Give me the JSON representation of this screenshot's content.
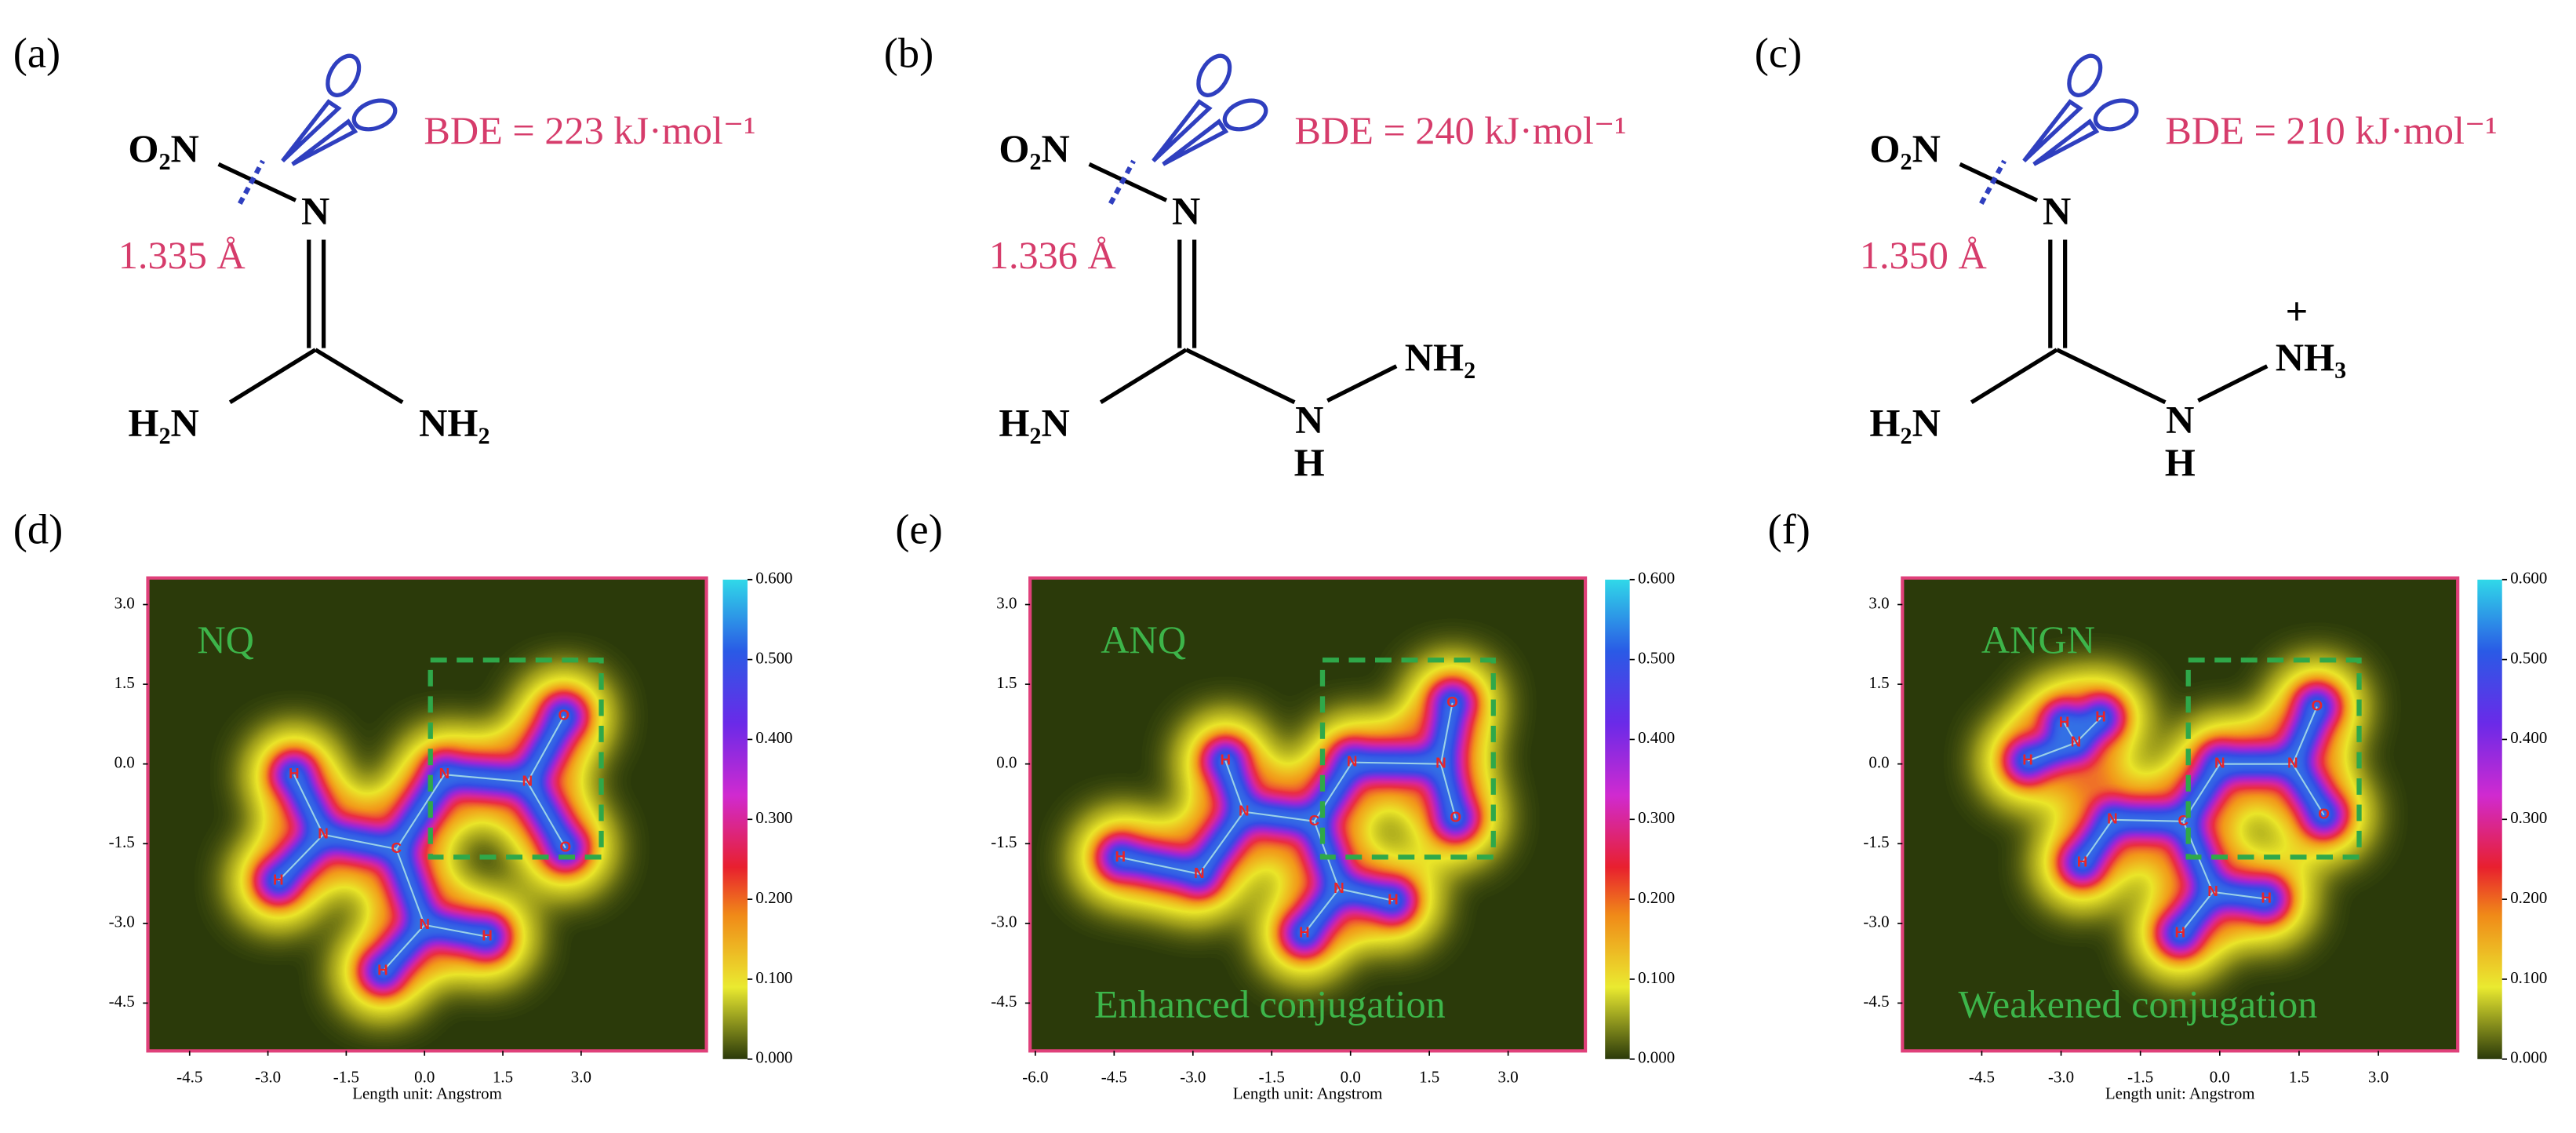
{
  "structures": [
    {
      "label": "(a)",
      "left_group": "O₂N",
      "top_atom": "N",
      "bond_length": "1.335 Å",
      "bde": "BDE = 223 kJ·mol⁻¹",
      "bottom_left": "H₂N",
      "bottom_right": "NH₂"
    },
    {
      "label": "(b)",
      "left_group": "O₂N",
      "top_atom": "N",
      "bond_length": "1.336 Å",
      "bde": "BDE = 240 kJ·mol⁻¹",
      "bottom_left": "H₂N",
      "bottom_right": "N",
      "bottom_right_h": "H",
      "terminal": "NH₂"
    },
    {
      "label": "(c)",
      "left_group": "O₂N",
      "top_atom": "N",
      "bond_length": "1.350 Å",
      "bde": "BDE = 210 kJ·mol⁻¹",
      "bottom_left": "H₂N",
      "bottom_right": "N",
      "bottom_right_h": "H",
      "terminal": "NH₃",
      "charge": "+"
    }
  ],
  "maps": [
    {
      "label": "(d)",
      "name": "NQ",
      "x_axis_label": "Length unit: Angstrom",
      "xlim": [
        -5.3,
        5.4
      ],
      "ylim": [
        -5.4,
        3.5
      ],
      "xticks": [
        -4.5,
        {
          "value": -3.0,
          "label": "-3.0"
        },
        -1.5,
        {
          "value": 0.0,
          "label": "0.0"
        },
        1.5,
        {
          "value": 3.0,
          "label": "3.0"
        }
      ],
      "yticks": [
        {
          "value": 3.0,
          "label": "3.0"
        },
        1.5,
        {
          "value": 0.0,
          "label": "0.0"
        },
        -1.5,
        {
          "value": -3.0,
          "label": "-3.0"
        },
        -4.5
      ],
      "colorbar_ticks": [
        {
          "value": 0,
          "label": "0.000"
        },
        {
          "value": 0.1,
          "label": "0.100"
        },
        {
          "value": 0.2,
          "label": "0.200"
        },
        {
          "value": 0.3,
          "label": "0.300"
        },
        {
          "value": 0.4,
          "label": "0.400"
        },
        {
          "value": 0.5,
          "label": "0.500"
        },
        {
          "value": 0.6,
          "label": "0.600"
        }
      ],
      "atoms": [
        {
          "label": "N",
          "x": 0.38,
          "y": -0.2
        },
        {
          "label": "N",
          "x": 1.97,
          "y": -0.34
        },
        {
          "label": "O",
          "x": 2.67,
          "y": 0.9
        },
        {
          "label": "O",
          "x": 2.7,
          "y": -1.58
        },
        {
          "label": "C",
          "x": -0.54,
          "y": -1.6
        },
        {
          "label": "N",
          "x": -1.94,
          "y": -1.33
        },
        {
          "label": "H",
          "x": -2.5,
          "y": -0.2
        },
        {
          "label": "H",
          "x": -2.8,
          "y": -2.2
        },
        {
          "label": "N",
          "x": 0.0,
          "y": -3.03
        },
        {
          "label": "H",
          "x": -0.8,
          "y": -3.9
        },
        {
          "label": "H",
          "x": 1.2,
          "y": -3.25
        }
      ]
    },
    {
      "label": "(e)",
      "name": "ANQ",
      "note": "Enhanced conjugation",
      "x_axis_label": "Length unit: Angstrom",
      "xlim": [
        -6.1,
        4.47
      ],
      "ylim": [
        -5.4,
        3.5
      ],
      "xticks": [
        {
          "value": -6.0,
          "label": "-6.0"
        },
        -4.5,
        {
          "value": -3.0,
          "label": "-3.0"
        },
        -1.5,
        {
          "value": 0.0,
          "label": "0.0"
        },
        1.5,
        {
          "value": 3.0,
          "label": "3.0"
        }
      ],
      "yticks": [
        {
          "value": 3.0,
          "label": "3.0"
        },
        1.5,
        {
          "value": 0.0,
          "label": "0.0"
        },
        -1.5,
        {
          "value": -3.0,
          "label": "-3.0"
        },
        -4.5
      ],
      "colorbar_ticks": [
        {
          "value": 0,
          "label": "0.000"
        },
        {
          "value": 0.1,
          "label": "0.100"
        },
        {
          "value": 0.2,
          "label": "0.200"
        },
        {
          "value": 0.3,
          "label": "0.300"
        },
        {
          "value": 0.4,
          "label": "0.400"
        },
        {
          "value": 0.5,
          "label": "0.500"
        },
        {
          "value": 0.6,
          "label": "0.600"
        }
      ],
      "atoms": [
        {
          "label": "N",
          "x": 0.03,
          "y": 0.03
        },
        {
          "label": "N",
          "x": 1.72,
          "y": 0
        },
        {
          "label": "O",
          "x": 1.94,
          "y": 1.15
        },
        {
          "label": "O",
          "x": 2.0,
          "y": -1.02
        },
        {
          "label": "C",
          "x": -0.69,
          "y": -1.08
        },
        {
          "label": "N",
          "x": -2.03,
          "y": -0.9
        },
        {
          "label": "H",
          "x": -2.38,
          "y": 0.06
        },
        {
          "label": "N",
          "x": -2.88,
          "y": -2.07
        },
        {
          "label": "H",
          "x": -4.38,
          "y": -1.76
        },
        {
          "label": "N",
          "x": -0.22,
          "y": -2.35
        },
        {
          "label": "H",
          "x": -0.88,
          "y": -3.19
        },
        {
          "label": "H",
          "x": 0.81,
          "y": -2.57
        }
      ]
    },
    {
      "label": "(f)",
      "name": "ANGN",
      "note": "Weakened conjugation",
      "x_axis_label": "Length unit: Angstrom",
      "xlim": [
        -6.0,
        4.5
      ],
      "ylim": [
        -5.4,
        3.5
      ],
      "xticks": [
        -4.5,
        {
          "value": -3.0,
          "label": "-3.0"
        },
        -1.5,
        {
          "value": 0.0,
          "label": "0.0"
        },
        1.5,
        {
          "value": 3.0,
          "label": "3.0"
        }
      ],
      "yticks": [
        {
          "value": 3.0,
          "label": "3.0"
        },
        1.5,
        {
          "value": 0.0,
          "label": "0.0"
        },
        -1.5,
        {
          "value": -3.0,
          "label": "-3.0"
        },
        -4.5
      ],
      "colorbar_ticks": [
        {
          "value": 0,
          "label": "0.000"
        },
        {
          "value": 0.1,
          "label": "0.100"
        },
        {
          "value": 0.2,
          "label": "0.200"
        },
        {
          "value": 0.3,
          "label": "0.300"
        },
        {
          "value": 0.4,
          "label": "0.400"
        },
        {
          "value": 0.5,
          "label": "0.500"
        },
        {
          "value": 0.6,
          "label": "0.600"
        }
      ],
      "atoms": [
        {
          "label": "N",
          "x": 0,
          "y": 0
        },
        {
          "label": "N",
          "x": 1.38,
          "y": 0
        },
        {
          "label": "O",
          "x": 1.84,
          "y": 1.08
        },
        {
          "label": "O",
          "x": 1.97,
          "y": -0.96
        },
        {
          "label": "C",
          "x": -0.69,
          "y": -1.08
        },
        {
          "label": "N",
          "x": -2.03,
          "y": -1.05
        },
        {
          "label": "H",
          "x": -2.6,
          "y": -1.86
        },
        {
          "label": "N",
          "x": -2.72,
          "y": 0.4
        },
        {
          "label": "H",
          "x": -3.63,
          "y": 0.06
        },
        {
          "label": "H",
          "x": -2.94,
          "y": 0.77
        },
        {
          "label": "H",
          "x": -2.25,
          "y": 0.87
        },
        {
          "label": "N",
          "x": -0.13,
          "y": -2.41
        },
        {
          "label": "H",
          "x": -0.75,
          "y": -3.19
        },
        {
          "label": "H",
          "x": 0.88,
          "y": -2.54
        }
      ]
    }
  ]
}
